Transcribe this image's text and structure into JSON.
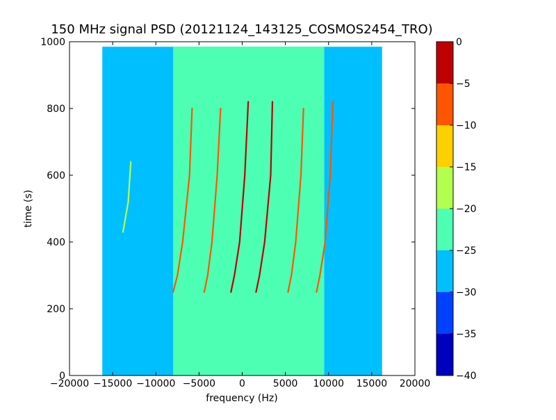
{
  "chart_data": {
    "type": "heatmap",
    "title": "150 MHz signal PSD (20121124_143125_COSMOS2454_TRO)",
    "xlabel": "frequency (Hz)",
    "ylabel": "time (s)",
    "xlim": [
      -20000,
      20000
    ],
    "ylim": [
      0,
      1000
    ],
    "x_ticks": [
      -20000,
      -15000,
      -10000,
      -5000,
      0,
      5000,
      10000,
      15000,
      20000
    ],
    "x_tick_labels": [
      "−20000",
      "−15000",
      "−10000",
      "−5000",
      "0",
      "5000",
      "10000",
      "15000",
      "20000"
    ],
    "y_ticks": [
      0,
      200,
      400,
      600,
      800,
      1000
    ],
    "y_tick_labels": [
      "0",
      "200",
      "400",
      "600",
      "800",
      "1000"
    ],
    "data_extent": {
      "x": [
        -16200,
        16200
      ],
      "y": [
        0,
        985
      ]
    },
    "noise_floor": {
      "outer_level": -27,
      "center_level": -22,
      "center_band_hz": [
        -8000,
        9500
      ]
    },
    "colorbar": {
      "levels": [
        -40,
        -35,
        -30,
        -25,
        -20,
        -15,
        -10,
        -5,
        0
      ],
      "tick_labels": [
        "−40",
        "−35",
        "−30",
        "−25",
        "−20",
        "−15",
        "−10",
        "−5",
        "0"
      ],
      "colors": [
        "#0000bf",
        "#0040ff",
        "#00bfff",
        "#4dffb3",
        "#b3ff4d",
        "#ffd000",
        "#ff5500",
        "#bf0000"
      ]
    },
    "series": [
      {
        "level": -2,
        "points": [
          [
            700,
            820
          ],
          [
            300,
            600
          ],
          [
            -300,
            400
          ],
          [
            -900,
            300
          ],
          [
            -1300,
            250
          ]
        ]
      },
      {
        "level": -4,
        "points": [
          [
            3500,
            820
          ],
          [
            3300,
            600
          ],
          [
            2600,
            400
          ],
          [
            2000,
            300
          ],
          [
            1600,
            250
          ]
        ]
      },
      {
        "level": -8,
        "points": [
          [
            -5800,
            800
          ],
          [
            -6100,
            600
          ],
          [
            -6900,
            400
          ],
          [
            -7500,
            300
          ],
          [
            -8000,
            250
          ]
        ]
      },
      {
        "level": -8,
        "points": [
          [
            10500,
            820
          ],
          [
            10200,
            600
          ],
          [
            9600,
            400
          ],
          [
            9000,
            300
          ],
          [
            8600,
            250
          ]
        ]
      },
      {
        "level": -6,
        "points": [
          [
            -2500,
            800
          ],
          [
            -2900,
            600
          ],
          [
            -3500,
            400
          ],
          [
            -4000,
            300
          ],
          [
            -4400,
            250
          ]
        ]
      },
      {
        "level": -8,
        "points": [
          [
            7100,
            800
          ],
          [
            6800,
            600
          ],
          [
            6200,
            400
          ],
          [
            5700,
            300
          ],
          [
            5300,
            250
          ]
        ]
      },
      {
        "level": -16,
        "points": [
          [
            -12900,
            640
          ],
          [
            -13200,
            520
          ],
          [
            -13800,
            430
          ]
        ]
      }
    ]
  }
}
